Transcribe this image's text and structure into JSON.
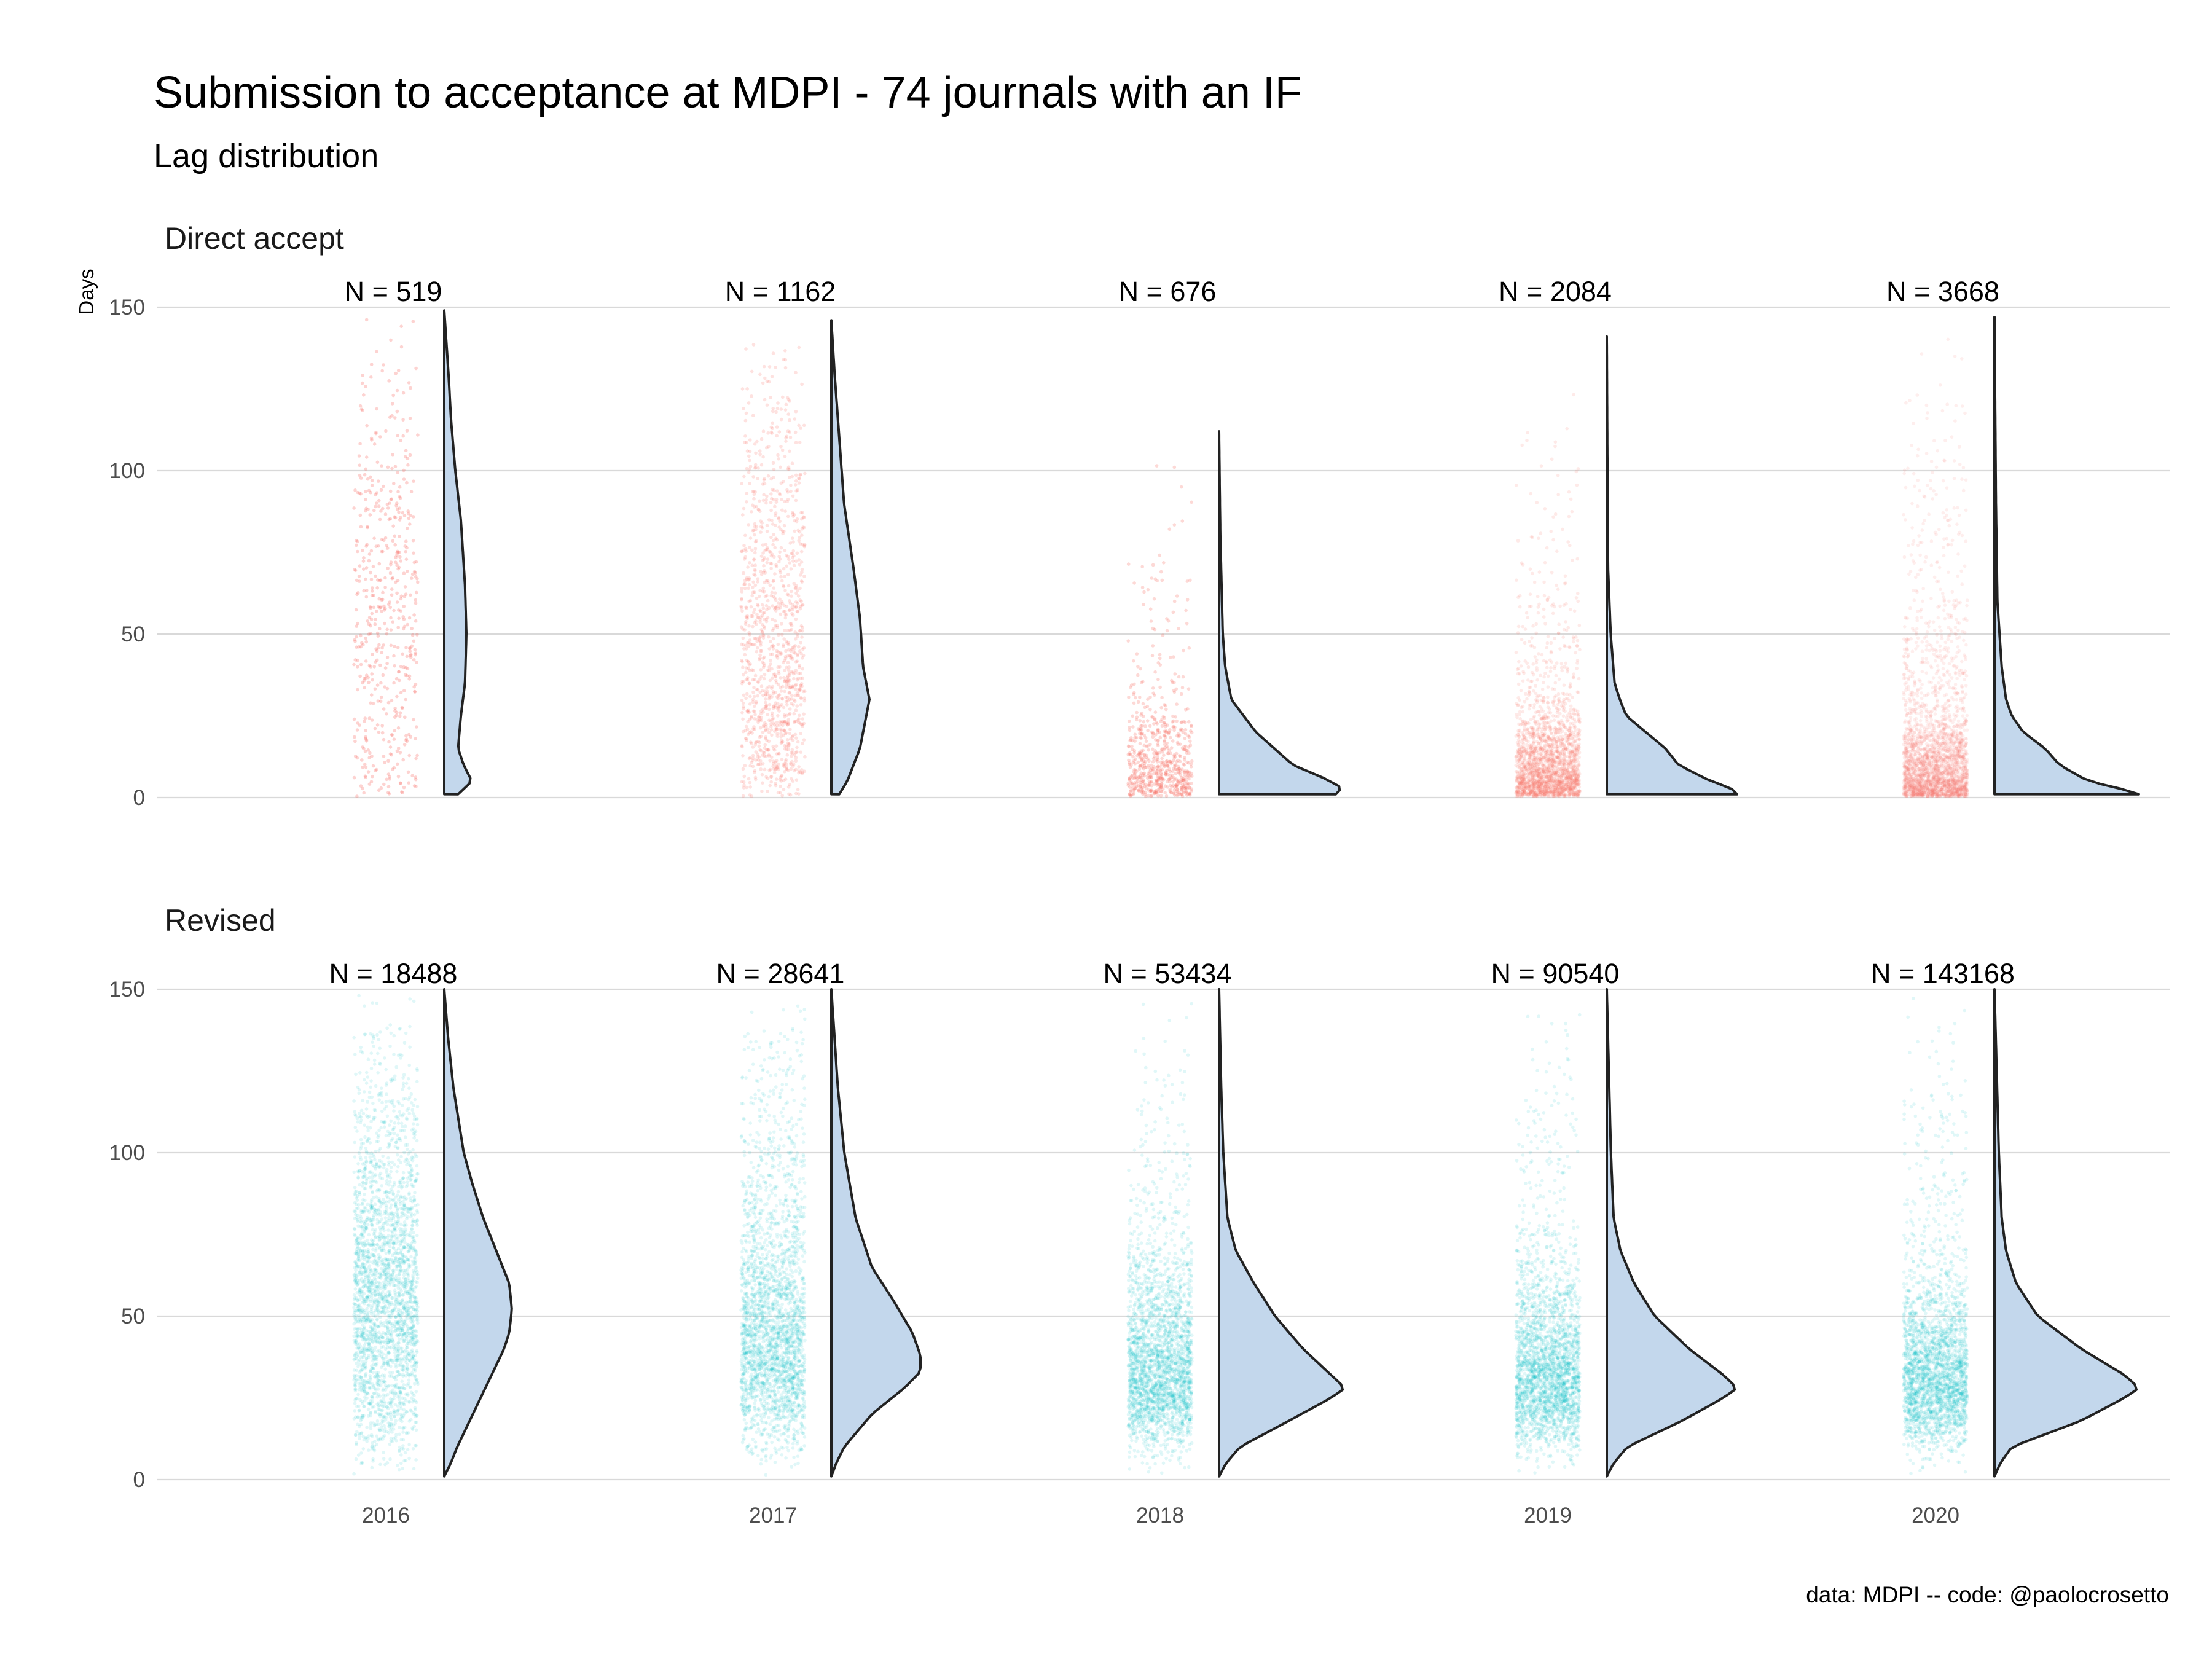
{
  "chart_data": {
    "type": "scatter",
    "title": "Submission to acceptance at MDPI - 74 journals with an IF",
    "subtitle": "Lag distribution",
    "ylabel": "Days",
    "xlabel": "",
    "caption": "data: MDPI -- code: @paolocrosetto",
    "ylim": [
      0,
      150
    ],
    "yticks": [
      0,
      50,
      100,
      150
    ],
    "grid": true,
    "categories": [
      "2016",
      "2017",
      "2018",
      "2019",
      "2020"
    ],
    "facets": [
      {
        "label": "Direct accept",
        "color": "#f8766d",
        "n_labels": [
          "N = 519",
          "N = 1162",
          "N = 676",
          "N = 2084",
          "N = 3668"
        ],
        "counts": [
          519,
          1162,
          676,
          2084,
          3668
        ],
        "max_days": [
          149,
          146,
          112,
          141,
          147
        ],
        "density": [
          [
            [
              1,
              0.1
            ],
            [
              5,
              0.2
            ],
            [
              10,
              0.14
            ],
            [
              15,
              0.1
            ],
            [
              25,
              0.12
            ],
            [
              35,
              0.15
            ],
            [
              50,
              0.16
            ],
            [
              65,
              0.15
            ],
            [
              85,
              0.12
            ],
            [
              100,
              0.08
            ],
            [
              115,
              0.05
            ],
            [
              130,
              0.03
            ],
            [
              149,
              0
            ]
          ],
          [
            [
              1,
              0.05
            ],
            [
              5,
              0.1
            ],
            [
              15,
              0.18
            ],
            [
              25,
              0.22
            ],
            [
              30,
              0.24
            ],
            [
              40,
              0.2
            ],
            [
              55,
              0.18
            ],
            [
              70,
              0.14
            ],
            [
              90,
              0.08
            ],
            [
              110,
              0.05
            ],
            [
              130,
              0.02
            ],
            [
              146,
              0
            ]
          ],
          [
            [
              1,
              0.95
            ],
            [
              3,
              1.0
            ],
            [
              6,
              0.85
            ],
            [
              10,
              0.6
            ],
            [
              15,
              0.45
            ],
            [
              20,
              0.3
            ],
            [
              25,
              0.2
            ],
            [
              30,
              0.1
            ],
            [
              40,
              0.05
            ],
            [
              50,
              0.03
            ],
            [
              65,
              0.02
            ],
            [
              80,
              0.01
            ],
            [
              95,
              0.005
            ],
            [
              112,
              0
            ]
          ],
          [
            [
              1,
              1.0
            ],
            [
              3,
              0.95
            ],
            [
              5,
              0.8
            ],
            [
              10,
              0.55
            ],
            [
              15,
              0.45
            ],
            [
              20,
              0.3
            ],
            [
              25,
              0.15
            ],
            [
              30,
              0.1
            ],
            [
              35,
              0.06
            ],
            [
              50,
              0.03
            ],
            [
              70,
              0.01
            ],
            [
              100,
              0.005
            ],
            [
              141,
              0
            ]
          ],
          [
            [
              1,
              1.0
            ],
            [
              3,
              0.85
            ],
            [
              5,
              0.65
            ],
            [
              10,
              0.45
            ],
            [
              15,
              0.35
            ],
            [
              20,
              0.2
            ],
            [
              25,
              0.12
            ],
            [
              30,
              0.08
            ],
            [
              40,
              0.05
            ],
            [
              60,
              0.02
            ],
            [
              90,
              0.01
            ],
            [
              147,
              0
            ]
          ]
        ]
      },
      {
        "label": "Revised",
        "color": "#00bfc4",
        "n_labels": [
          "N = 18488",
          "N = 28641",
          "N = 53434",
          "N = 90540",
          "N = 143168"
        ],
        "counts": [
          18488,
          28641,
          53434,
          90540,
          143168
        ],
        "max_days": [
          150,
          150,
          150,
          150,
          150
        ],
        "density": [
          [
            [
              1,
              0
            ],
            [
              5,
              0.05
            ],
            [
              10,
              0.1
            ],
            [
              20,
              0.22
            ],
            [
              30,
              0.34
            ],
            [
              40,
              0.46
            ],
            [
              45,
              0.5
            ],
            [
              52,
              0.52
            ],
            [
              60,
              0.5
            ],
            [
              70,
              0.4
            ],
            [
              80,
              0.3
            ],
            [
              90,
              0.22
            ],
            [
              100,
              0.15
            ],
            [
              120,
              0.07
            ],
            [
              135,
              0.03
            ],
            [
              150,
              0
            ]
          ],
          [
            [
              1,
              0
            ],
            [
              5,
              0.03
            ],
            [
              10,
              0.08
            ],
            [
              20,
              0.25
            ],
            [
              28,
              0.45
            ],
            [
              33,
              0.55
            ],
            [
              38,
              0.55
            ],
            [
              45,
              0.5
            ],
            [
              55,
              0.38
            ],
            [
              65,
              0.25
            ],
            [
              80,
              0.15
            ],
            [
              100,
              0.08
            ],
            [
              120,
              0.04
            ],
            [
              150,
              0
            ]
          ],
          [
            [
              1,
              0
            ],
            [
              5,
              0.05
            ],
            [
              10,
              0.15
            ],
            [
              18,
              0.5
            ],
            [
              25,
              0.8
            ],
            [
              28,
              0.9
            ],
            [
              32,
              0.8
            ],
            [
              40,
              0.6
            ],
            [
              50,
              0.4
            ],
            [
              60,
              0.25
            ],
            [
              70,
              0.12
            ],
            [
              80,
              0.06
            ],
            [
              100,
              0.03
            ],
            [
              120,
              0.015
            ],
            [
              150,
              0
            ]
          ],
          [
            [
              1,
              0
            ],
            [
              5,
              0.05
            ],
            [
              10,
              0.15
            ],
            [
              18,
              0.55
            ],
            [
              25,
              0.85
            ],
            [
              28,
              0.95
            ],
            [
              32,
              0.85
            ],
            [
              40,
              0.6
            ],
            [
              50,
              0.35
            ],
            [
              60,
              0.2
            ],
            [
              70,
              0.1
            ],
            [
              80,
              0.05
            ],
            [
              100,
              0.03
            ],
            [
              150,
              0
            ]
          ],
          [
            [
              1,
              0
            ],
            [
              5,
              0.04
            ],
            [
              10,
              0.12
            ],
            [
              18,
              0.6
            ],
            [
              25,
              0.9
            ],
            [
              28,
              1.0
            ],
            [
              32,
              0.9
            ],
            [
              40,
              0.6
            ],
            [
              50,
              0.3
            ],
            [
              60,
              0.15
            ],
            [
              70,
              0.08
            ],
            [
              80,
              0.05
            ],
            [
              100,
              0.03
            ],
            [
              150,
              0
            ]
          ]
        ]
      }
    ]
  }
}
